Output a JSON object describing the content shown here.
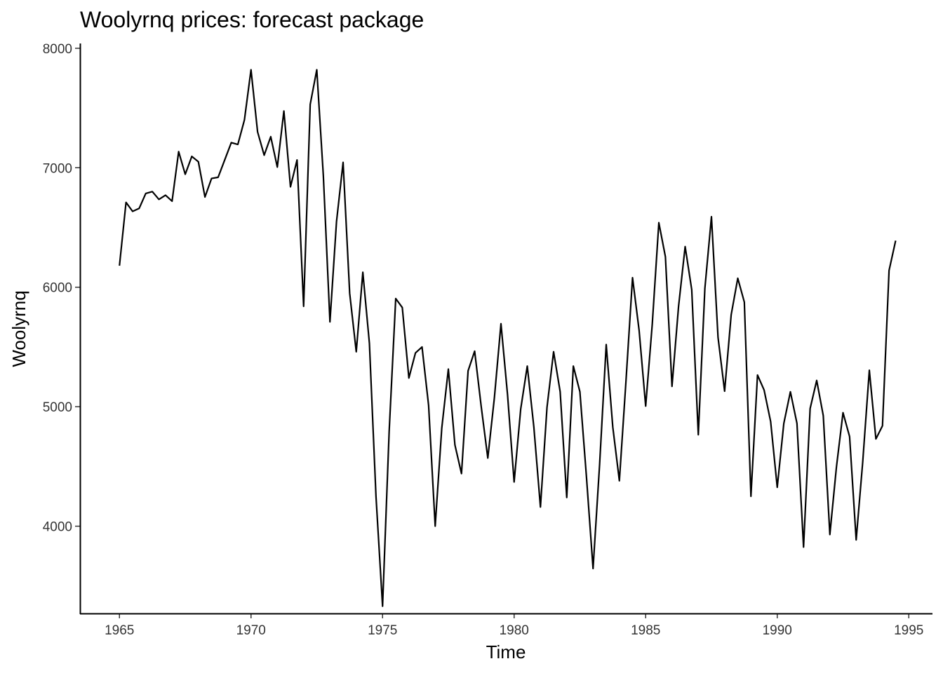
{
  "chart_data": {
    "type": "line",
    "title": "Woolyrnq prices: forecast package",
    "xlabel": "Time",
    "ylabel": "Woolyrnq",
    "x_start": 1965,
    "frequency": 4,
    "xlim": [
      1963.5,
      1995.9
    ],
    "ylim": [
      3270,
      8040
    ],
    "xticks": [
      1965,
      1970,
      1975,
      1980,
      1985,
      1990,
      1995
    ],
    "yticks": [
      4000,
      5000,
      6000,
      7000,
      8000
    ],
    "grid": false,
    "legend": "none",
    "line_color": "#000000",
    "series": [
      {
        "values": [
          6180,
          6710,
          6635,
          6660,
          6785,
          6800,
          6735,
          6770,
          6720,
          7135,
          6945,
          7095,
          7050,
          6755,
          6910,
          6920,
          7065,
          7210,
          7195,
          7400,
          7820,
          7300,
          7105,
          7260,
          7005,
          7475,
          6840,
          7065,
          5840,
          7530,
          7820,
          6930,
          5710,
          6550,
          7045,
          5950,
          5460,
          6125,
          5530,
          4250,
          3330,
          4790,
          5905,
          5830,
          5240,
          5450,
          5500,
          5010,
          4000,
          4820,
          5315,
          4680,
          4440,
          5300,
          5465,
          5000,
          4570,
          5075,
          5695,
          5100,
          4370,
          4980,
          5340,
          4830,
          4160,
          4995,
          5460,
          5125,
          4240,
          5340,
          5125,
          4410,
          3645,
          4520,
          5520,
          4830,
          4380,
          5210,
          6080,
          5640,
          5005,
          5690,
          6540,
          6255,
          5170,
          5840,
          6340,
          5980,
          4765,
          5990,
          6590,
          5580,
          5130,
          5770,
          6075,
          5875,
          4250,
          5265,
          5140,
          4875,
          4325,
          4860,
          5125,
          4860,
          3825,
          4985,
          5220,
          4925,
          3930,
          4495,
          4950,
          4750,
          3885,
          4540,
          5305,
          4730,
          4840,
          6140,
          6390
        ]
      }
    ]
  }
}
